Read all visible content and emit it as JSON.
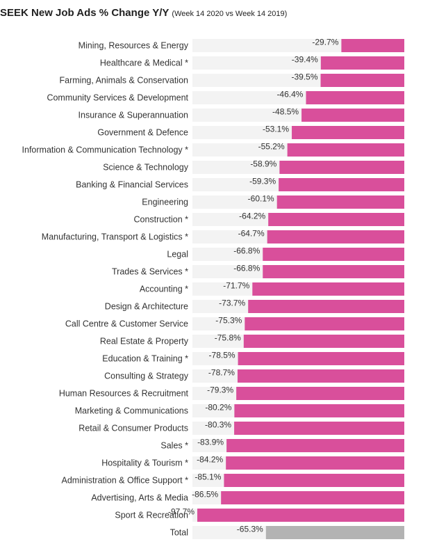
{
  "chart_data": {
    "type": "bar",
    "orientation": "horizontal",
    "title": "SEEK New Job Ads % Change Y/Y",
    "subtitle": "(Week 14 2020 vs Week 14 2019)",
    "categories": [
      "Mining, Resources & Energy",
      "Healthcare & Medical *",
      "Farming, Animals & Conservation",
      "Community Services & Development",
      "Insurance & Superannuation",
      "Government & Defence",
      "Information & Communication Technology *",
      "Science & Technology",
      "Banking & Financial Services",
      "Engineering",
      "Construction *",
      "Manufacturing, Transport & Logistics *",
      "Legal",
      "Trades & Services *",
      "Accounting *",
      "Design & Architecture",
      "Call Centre & Customer Service",
      "Real Estate & Property",
      "Education & Training *",
      "Consulting & Strategy",
      "Human Resources & Recruitment",
      "Marketing & Communications",
      "Retail & Consumer Products",
      "Sales *",
      "Hospitality & Tourism *",
      "Administration & Office Support *",
      "Advertising, Arts & Media",
      "Sport & Recreation",
      "Total"
    ],
    "values": [
      -29.7,
      -39.4,
      -39.5,
      -46.4,
      -48.5,
      -53.1,
      -55.2,
      -58.9,
      -59.3,
      -60.1,
      -64.2,
      -64.7,
      -66.8,
      -66.8,
      -71.7,
      -73.7,
      -75.3,
      -75.8,
      -78.5,
      -78.7,
      -79.3,
      -80.2,
      -80.3,
      -83.9,
      -84.2,
      -85.1,
      -86.5,
      -97.7,
      -65.3
    ],
    "value_labels": [
      "-29.7%",
      "-39.4%",
      "-39.5%",
      "-46.4%",
      "-48.5%",
      "-53.1%",
      "-55.2%",
      "-58.9%",
      "-59.3%",
      "-60.1%",
      "-64.2%",
      "-64.7%",
      "-66.8%",
      "-66.8%",
      "-71.7%",
      "-73.7%",
      "-75.3%",
      "-75.8%",
      "-78.5%",
      "-78.7%",
      "-79.3%",
      "-80.2%",
      "-80.3%",
      "-83.9%",
      "-84.2%",
      "-85.1%",
      "-86.5%",
      "-97.7%",
      "-65.3%"
    ],
    "xlim": [
      -100,
      0
    ],
    "grid": false,
    "legend": "none",
    "colors": {
      "bar": "#d94f9b",
      "total_bar": "#b3b3b3",
      "track": "#f3f3f3"
    }
  }
}
